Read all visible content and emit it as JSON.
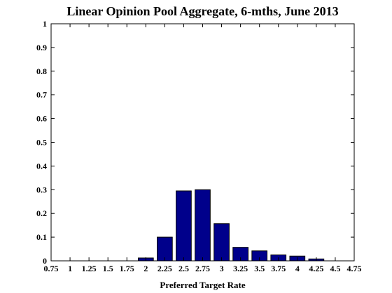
{
  "chart_data": {
    "type": "bar",
    "title": "Linear Opinion Pool Aggregate, 6-mths, June 2013",
    "xlabel": "Preferred Target Rate",
    "ylabel": "",
    "x": [
      0.75,
      1,
      1.25,
      1.5,
      1.75,
      2,
      2.25,
      2.5,
      2.75,
      3,
      3.25,
      3.5,
      3.75,
      4,
      4.25,
      4.5,
      4.75
    ],
    "x_tick_labels": [
      "0.75",
      "1",
      "1.25",
      "1.5",
      "1.75",
      "2",
      "2.25",
      "2.5",
      "2.75",
      "3",
      "3.25",
      "3.5",
      "3.75",
      "4",
      "4.25",
      "4.5",
      "4.75"
    ],
    "values": [
      0,
      0,
      0,
      0,
      0,
      0.012,
      0.1,
      0.295,
      0.3,
      0.157,
      0.057,
      0.042,
      0.025,
      0.02,
      0.008,
      0,
      0
    ],
    "xlim": [
      0.75,
      4.75
    ],
    "ylim": [
      0,
      1
    ],
    "y_ticks": [
      0,
      0.1,
      0.2,
      0.3,
      0.4,
      0.5,
      0.6,
      0.7,
      0.8,
      0.9,
      1
    ],
    "y_tick_labels": [
      "0",
      "0.1",
      "0.2",
      "0.3",
      "0.4",
      "0.5",
      "0.6",
      "0.7",
      "0.8",
      "0.9",
      "1"
    ],
    "grid": false,
    "bar_color": "#00008b",
    "bar_edge_color": "#000000"
  }
}
